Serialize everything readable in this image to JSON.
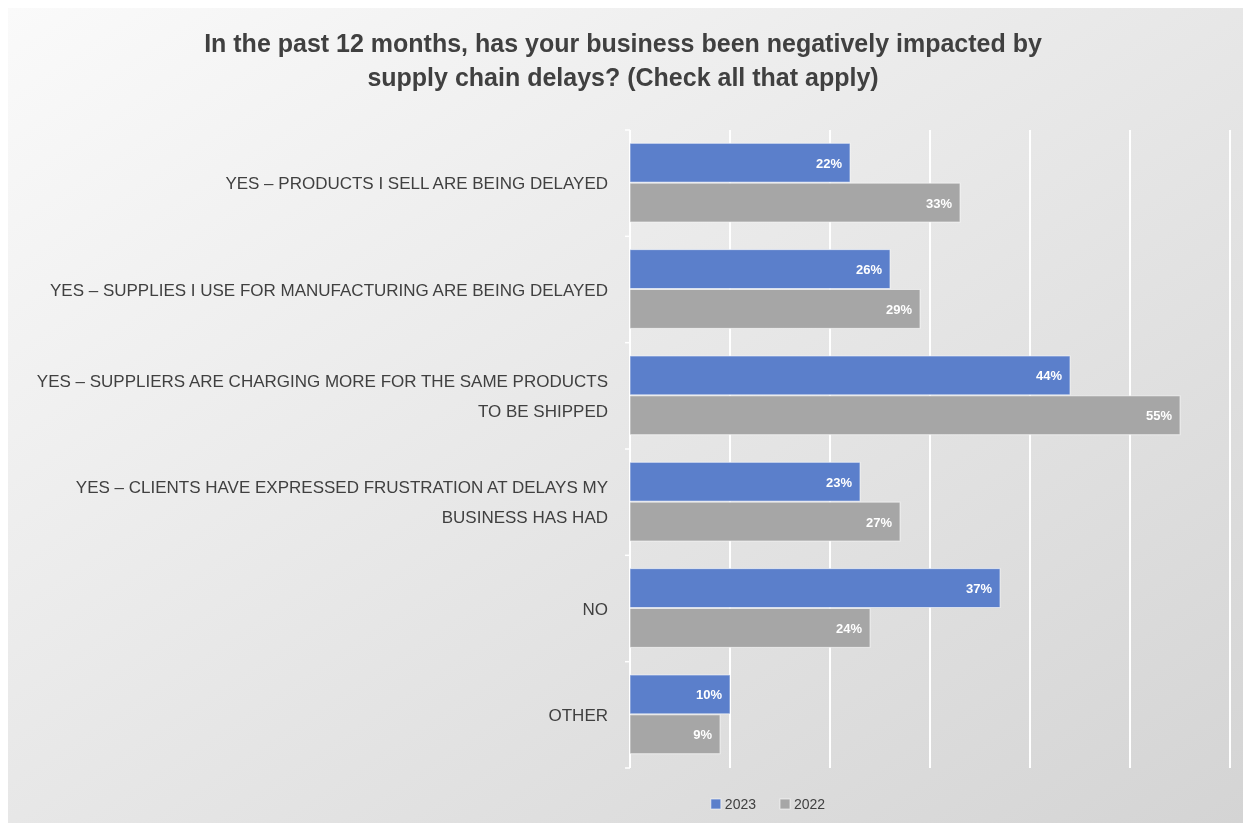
{
  "chart_data": {
    "type": "bar",
    "orientation": "horizontal",
    "title": "In the past 12 months, has your business been negatively impacted by supply chain delays? (Check all that apply)",
    "categories": [
      "YES – PRODUCTS I SELL ARE BEING DELAYED",
      "YES – SUPPLIES I USE FOR MANUFACTURING ARE BEING DELAYED",
      "YES – SUPPLIERS ARE CHARGING MORE FOR THE SAME PRODUCTS TO BE SHIPPED",
      "YES – CLIENTS HAVE EXPRESSED FRUSTRATION AT DELAYS MY BUSINESS HAS HAD",
      "NO",
      "OTHER"
    ],
    "series": [
      {
        "name": "2023",
        "color": "#5b7fcb",
        "values": [
          22,
          26,
          44,
          23,
          37,
          10
        ],
        "value_labels": [
          "22%",
          "26%",
          "44%",
          "23%",
          "37%",
          "10%"
        ]
      },
      {
        "name": "2022",
        "color": "#a6a6a6",
        "values": [
          33,
          29,
          55,
          27,
          24,
          9
        ],
        "value_labels": [
          "33%",
          "29%",
          "55%",
          "27%",
          "24%",
          "9%"
        ]
      }
    ],
    "xlim": [
      0,
      60
    ],
    "xticks": [
      {
        "value": 0,
        "label": null
      },
      {
        "value": 10,
        "label": null
      },
      {
        "value": 20,
        "label": null
      },
      {
        "value": 30,
        "label": null
      },
      {
        "value": 40,
        "label": null
      },
      {
        "value": 50,
        "label": null
      },
      {
        "value": 60,
        "label": null
      }
    ],
    "tick_labels": "y",
    "grid": "x",
    "legend": "bottom"
  }
}
